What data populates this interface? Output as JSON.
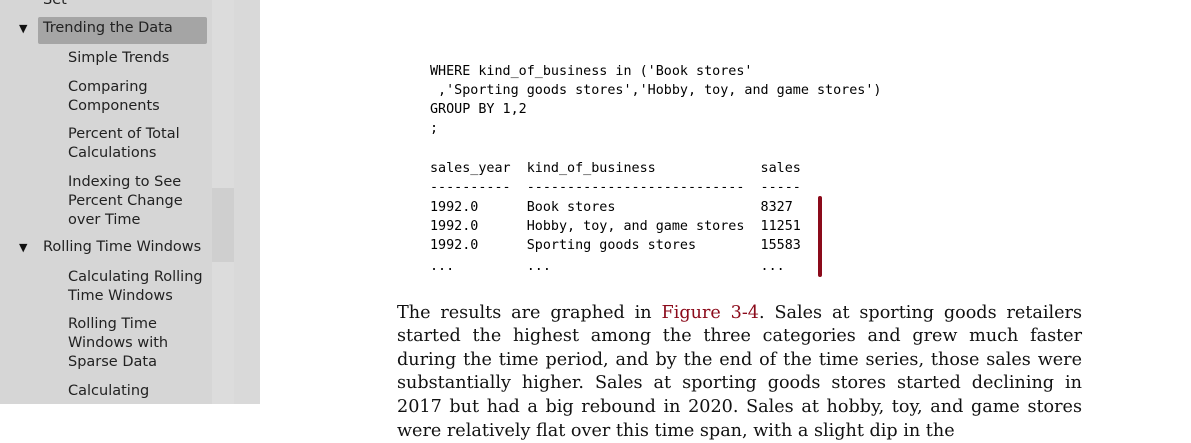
{
  "sidebar": {
    "cut_top_label": "Set",
    "items": [
      {
        "label": "Trending the Data"
      },
      {
        "label": "Simple Trends"
      },
      {
        "label": "Comparing Components"
      },
      {
        "label": "Percent of Total Calculations"
      },
      {
        "label": "Indexing to See Percent Change over Time"
      },
      {
        "label": "Rolling Time Windows"
      },
      {
        "label": "Calculating Rolling Time Windows"
      },
      {
        "label": "Rolling Time Windows with Sparse Data"
      },
      {
        "label": "Calculating"
      }
    ],
    "expand_glyph": "▼"
  },
  "code": {
    "lines": [
      "WHERE kind_of_business in ('Book stores'",
      " ,'Sporting goods stores','Hobby, toy, and game stores')",
      "GROUP BY 1,2",
      ";"
    ],
    "result_lines": [
      "sales_year  kind_of_business             sales",
      "----------  ---------------------------  -----",
      "1992.0      Book stores                  8327",
      "1992.0      Hobby, toy, and game stores  11251",
      "1992.0      Sporting goods stores        15583",
      "...         ...                          ..."
    ]
  },
  "paragraph": {
    "before_link": "The results are graphed in ",
    "link": "Figure 3-4",
    "after_link": ". Sales at sporting goods retailers started the highest among the three categories and grew much faster during the time period, and by the end of the time series, those sales were substantially higher. Sales at sporting goods stores started declining in 2017 but had a big rebound in 2020. Sales at hobby, toy, and game stores were relatively flat over this time span, with a slight dip in the"
  },
  "colors": {
    "accent": "#8b0a1a",
    "sidebar_bg": "#d6d6d6",
    "active_bg": "#a5a5a5"
  }
}
